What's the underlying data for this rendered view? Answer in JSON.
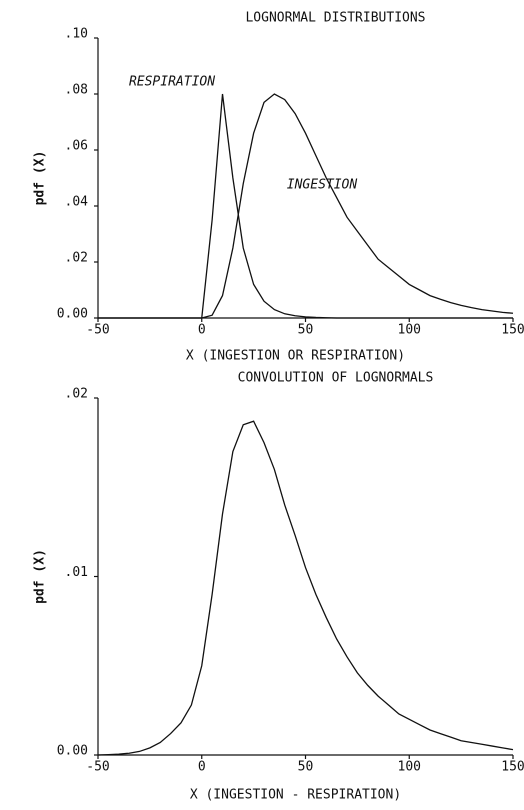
{
  "chart_data": [
    {
      "type": "line",
      "title": "LOGNORMAL DISTRIBUTIONS",
      "x_label": "X (INGESTION OR RESPIRATION)",
      "y_label": "pdf (X)",
      "x": [
        -50,
        -45,
        -40,
        -35,
        -30,
        -25,
        -20,
        -15,
        -10,
        -5,
        0,
        5,
        10,
        15,
        20,
        25,
        30,
        35,
        40,
        45,
        50,
        55,
        60,
        65,
        70,
        75,
        80,
        85,
        90,
        95,
        100,
        105,
        110,
        115,
        120,
        125,
        130,
        135,
        140,
        145,
        150
      ],
      "series": [
        {
          "name": "RESPIRATION",
          "color": "#111111",
          "values": [
            0,
            0,
            0,
            0,
            0,
            0,
            0,
            0,
            0,
            0,
            0,
            0.035,
            0.08,
            0.05,
            0.025,
            0.012,
            0.006,
            0.003,
            0.0015,
            0.0008,
            0.0004,
            0.0002,
            0.0001,
            0,
            0,
            0,
            0,
            0,
            0,
            0,
            0,
            0,
            0,
            0,
            0,
            0,
            0,
            0,
            0,
            0,
            0
          ]
        },
        {
          "name": "INGESTION",
          "color": "#111111",
          "values": [
            0,
            0,
            0,
            0,
            0,
            0,
            0,
            0,
            0,
            0,
            0,
            0.001,
            0.008,
            0.025,
            0.048,
            0.066,
            0.077,
            0.08,
            0.078,
            0.073,
            0.066,
            0.058,
            0.05,
            0.043,
            0.036,
            0.031,
            0.026,
            0.021,
            0.018,
            0.015,
            0.012,
            0.01,
            0.008,
            0.0067,
            0.0055,
            0.0045,
            0.0037,
            0.003,
            0.0025,
            0.002,
            0.0017
          ]
        }
      ],
      "xlim": [
        -50,
        150
      ],
      "xticks": [
        -50,
        0,
        50,
        100,
        150
      ],
      "ylim": [
        0,
        0.1
      ],
      "yticks": [
        {
          "value": 0,
          "label": "0.00"
        },
        {
          "value": 0.02,
          "label": ".02"
        },
        {
          "value": 0.04,
          "label": ".04"
        },
        {
          "value": 0.06,
          "label": ".06"
        },
        {
          "value": 0.08,
          "label": ".08"
        },
        {
          "value": 0.1,
          "label": ".10"
        }
      ]
    },
    {
      "type": "line",
      "title": "CONVOLUTION OF LOGNORMALS",
      "x_label": "X (INGESTION - RESPIRATION)",
      "y_label": "pdf (X)",
      "x": [
        -50,
        -45,
        -40,
        -35,
        -30,
        -25,
        -20,
        -15,
        -10,
        -5,
        0,
        5,
        10,
        15,
        20,
        25,
        30,
        35,
        40,
        45,
        50,
        55,
        60,
        65,
        70,
        75,
        80,
        85,
        90,
        95,
        100,
        105,
        110,
        115,
        120,
        125,
        130,
        135,
        140,
        145,
        150
      ],
      "series": [
        {
          "color": "#111111",
          "values": [
            0,
            2e-05,
            5e-05,
            0.0001,
            0.0002,
            0.0004,
            0.0007,
            0.0012,
            0.0018,
            0.0028,
            0.005,
            0.009,
            0.0135,
            0.017,
            0.0185,
            0.0187,
            0.0175,
            0.016,
            0.014,
            0.0123,
            0.0105,
            0.009,
            0.0077,
            0.0065,
            0.0055,
            0.0046,
            0.0039,
            0.0033,
            0.0028,
            0.0023,
            0.002,
            0.0017,
            0.0014,
            0.0012,
            0.001,
            0.0008,
            0.0007,
            0.0006,
            0.0005,
            0.0004,
            0.0003
          ]
        }
      ],
      "xlim": [
        -50,
        150
      ],
      "xticks": [
        -50,
        0,
        50,
        100,
        150
      ],
      "ylim": [
        0,
        0.02
      ],
      "yticks": [
        {
          "value": 0,
          "label": "0.00"
        },
        {
          "value": 0.01,
          "label": ".01"
        },
        {
          "value": 0.02,
          "label": ".02"
        }
      ]
    }
  ]
}
